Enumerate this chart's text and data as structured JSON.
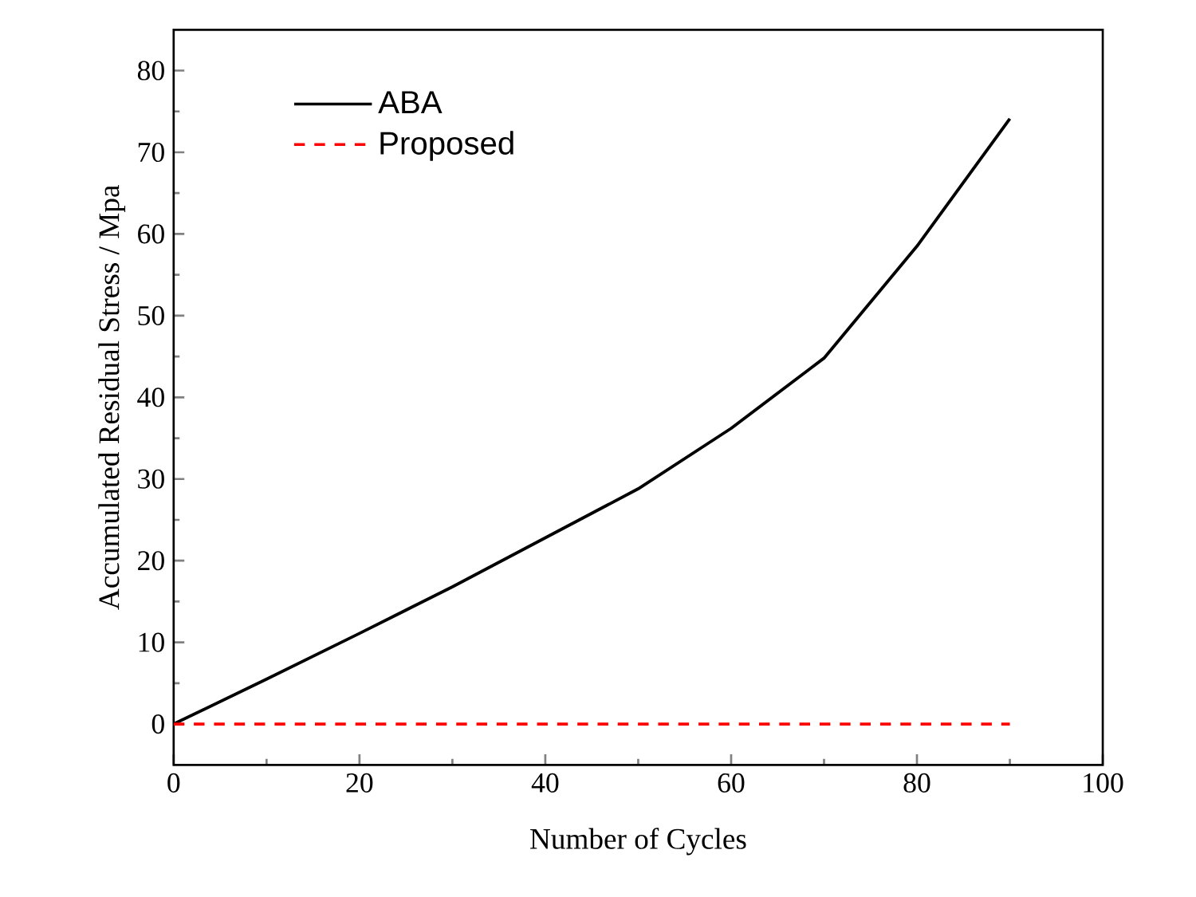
{
  "chart_data": {
    "type": "line",
    "xlabel": "Number of Cycles",
    "ylabel": "Accumulated Residual Stress / Mpa",
    "x": [
      0,
      10,
      20,
      30,
      40,
      50,
      60,
      70,
      80,
      90
    ],
    "series": [
      {
        "name": "ABA",
        "color": "#000000",
        "line_style": "solid",
        "values": [
          0,
          5.5,
          11.1,
          16.8,
          22.8,
          28.8,
          36.2,
          44.8,
          58.5,
          74.1
        ]
      },
      {
        "name": "Proposed",
        "color": "#ff0000",
        "line_style": "dashed",
        "values": [
          0,
          0,
          0,
          0,
          0,
          0,
          0,
          0,
          0,
          0
        ]
      }
    ],
    "xlim": [
      0,
      100
    ],
    "ylim": [
      -5,
      85
    ],
    "xticks": [
      0,
      20,
      40,
      60,
      80,
      100
    ],
    "yticks": [
      0,
      10,
      20,
      30,
      40,
      50,
      60,
      70,
      80
    ],
    "legend": "top left",
    "grid": false,
    "marker": "none"
  }
}
